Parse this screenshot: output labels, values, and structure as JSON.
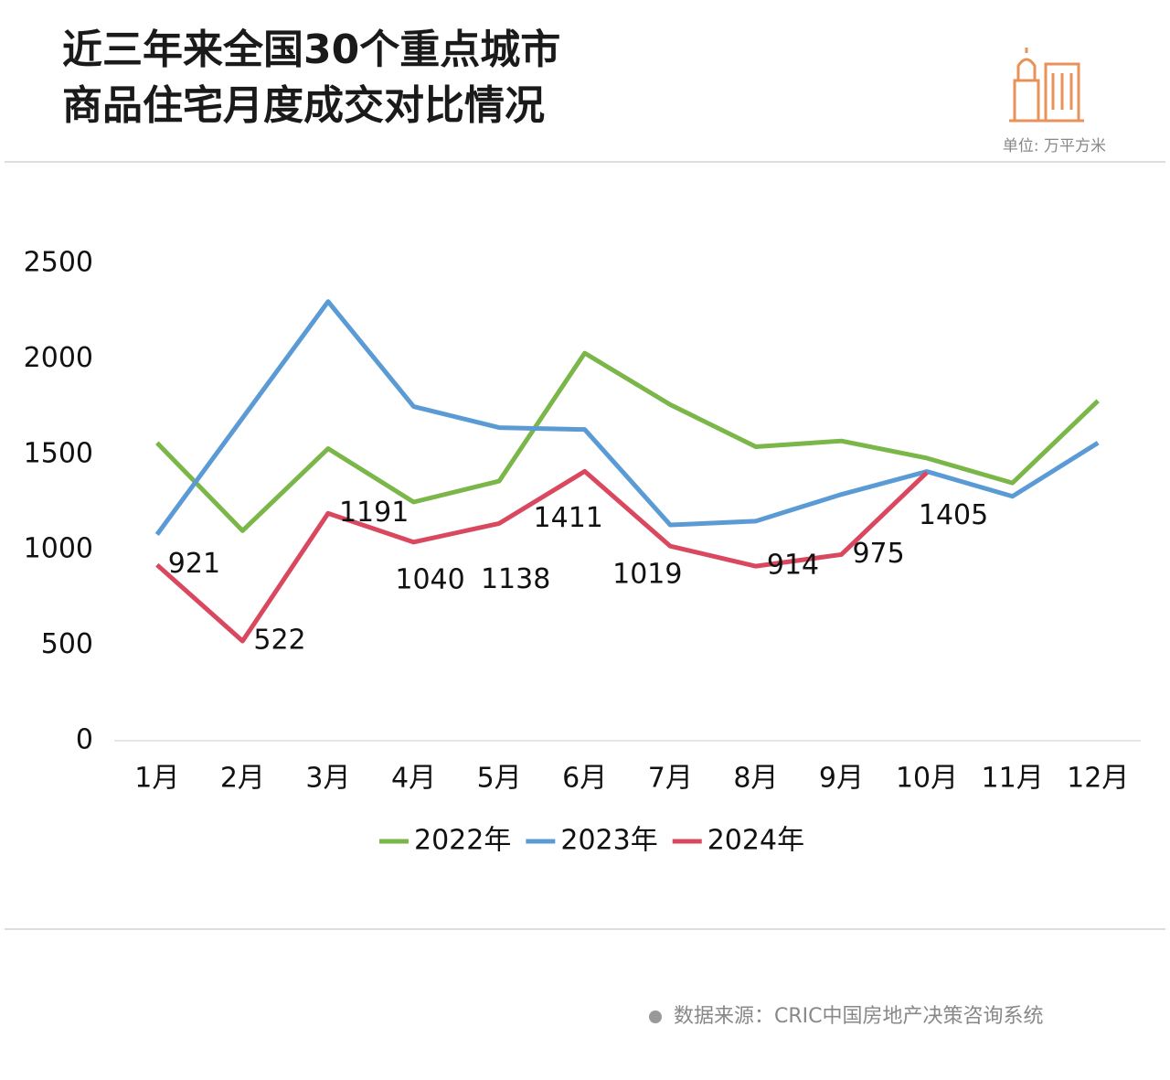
{
  "chart_data": {
    "type": "line",
    "title_lines": [
      "近三年来全国30个重点城市",
      "商品住宅月度成交对比情况"
    ],
    "unit": "单位: 万平方米",
    "source": "数据来源：CRIC中国房地产决策咨询系统",
    "categories": [
      "1月",
      "2月",
      "3月",
      "4月",
      "5月",
      "6月",
      "7月",
      "8月",
      "9月",
      "10月",
      "11月",
      "12月"
    ],
    "series": [
      {
        "name": "2022年",
        "color": "#7ab648",
        "values": [
          1560,
          1100,
          1530,
          1250,
          1360,
          2030,
          1760,
          1540,
          1570,
          1480,
          1350,
          1780
        ]
      },
      {
        "name": "2023年",
        "color": "#5b9bd5",
        "values": [
          1080,
          1690,
          2300,
          1750,
          1640,
          1630,
          1130,
          1150,
          1290,
          1410,
          1280,
          1560
        ]
      },
      {
        "name": "2024年",
        "color": "#d9485f",
        "values": [
          921,
          522,
          1191,
          1040,
          1138,
          1411,
          1019,
          914,
          975,
          1405,
          null,
          null
        ],
        "show_labels": true
      }
    ],
    "ylim": [
      0,
      2500
    ],
    "yticks": [
      0,
      500,
      1000,
      1500,
      2000,
      2500
    ],
    "legend": "bottom"
  }
}
